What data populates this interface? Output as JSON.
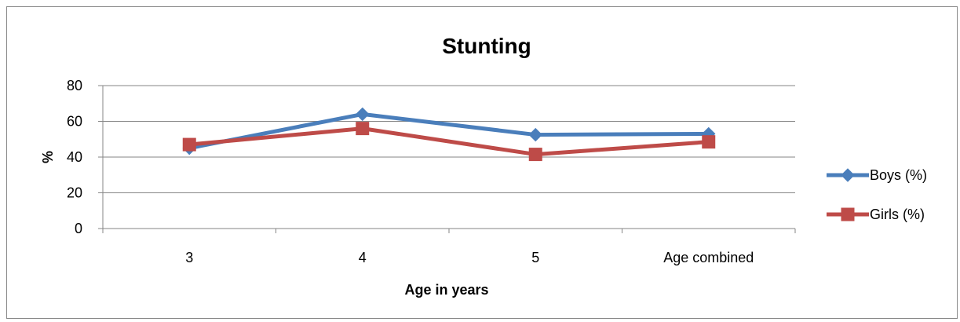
{
  "chart_data": {
    "type": "line",
    "title": "Stunting",
    "xlabel": "Age in years",
    "ylabel": "%",
    "categories": [
      "3",
      "4",
      "5",
      "Age combined"
    ],
    "ylim": [
      0,
      80
    ],
    "yticks": [
      "0",
      "20",
      "40",
      "60",
      "80"
    ],
    "grid": true,
    "legend_position": "right",
    "series": [
      {
        "name": "Boys (%)",
        "values": [
          45,
          64,
          52.5,
          53
        ],
        "color": "#4A7EBB",
        "marker": "diamond"
      },
      {
        "name": "Girls (%)",
        "values": [
          47,
          56,
          41.5,
          48.5
        ],
        "color": "#BE4B48",
        "marker": "square"
      }
    ]
  }
}
